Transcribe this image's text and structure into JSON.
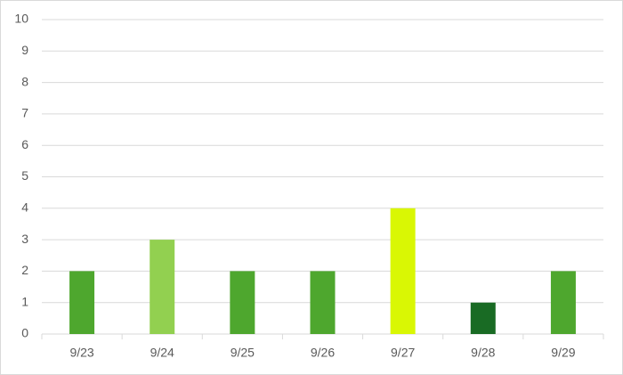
{
  "chart_data": {
    "type": "bar",
    "categories": [
      "9/23",
      "9/24",
      "9/25",
      "9/26",
      "9/27",
      "9/28",
      "9/29"
    ],
    "values": [
      2,
      3,
      2,
      2,
      4,
      1,
      2
    ],
    "colors": [
      "#4ea72e",
      "#92d050",
      "#4ea72e",
      "#4ea72e",
      "#d9f704",
      "#196b24",
      "#4ea72e"
    ],
    "ylim": [
      0,
      10
    ],
    "yticks": [
      0,
      1,
      2,
      3,
      4,
      5,
      6,
      7,
      8,
      9,
      10
    ],
    "grid": true
  }
}
